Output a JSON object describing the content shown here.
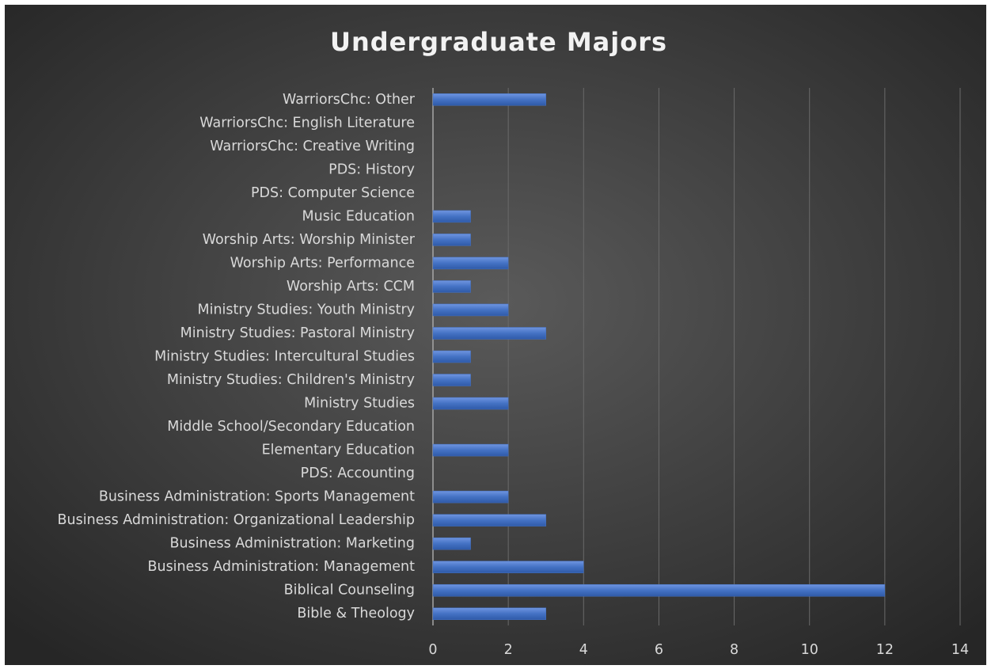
{
  "chart_data": {
    "type": "hbar",
    "title": "Undergraduate Majors",
    "categories": [
      "Bible & Theology",
      "Biblical Counseling",
      "Business Administration: Management",
      "Business Administration: Marketing",
      "Business Administration: Organizational Leadership",
      "Business Administration: Sports Management",
      "PDS: Accounting",
      "Elementary Education",
      "Middle School/Secondary Education",
      "Ministry Studies",
      "Ministry Studies: Children's Ministry",
      "Ministry Studies: Intercultural Studies",
      "Ministry Studies: Pastoral Ministry",
      "Ministry Studies: Youth Ministry",
      "Worship Arts: CCM",
      "Worship Arts: Performance",
      "Worship Arts: Worship Minister",
      "Music Education",
      "PDS: Computer Science",
      "PDS: History",
      "WarriorsChc: Creative Writing",
      "WarriorsChc: English Literature",
      "WarriorsChc: Other"
    ],
    "values": [
      3,
      12,
      4,
      1,
      3,
      2,
      0,
      2,
      0,
      2,
      1,
      1,
      3,
      2,
      1,
      2,
      1,
      1,
      0,
      0,
      0,
      0,
      3
    ],
    "color": "#4472c4",
    "xlim": [
      0,
      14
    ],
    "xticks": [
      0,
      2,
      4,
      6,
      8,
      10,
      12,
      14
    ],
    "grid": true
  }
}
